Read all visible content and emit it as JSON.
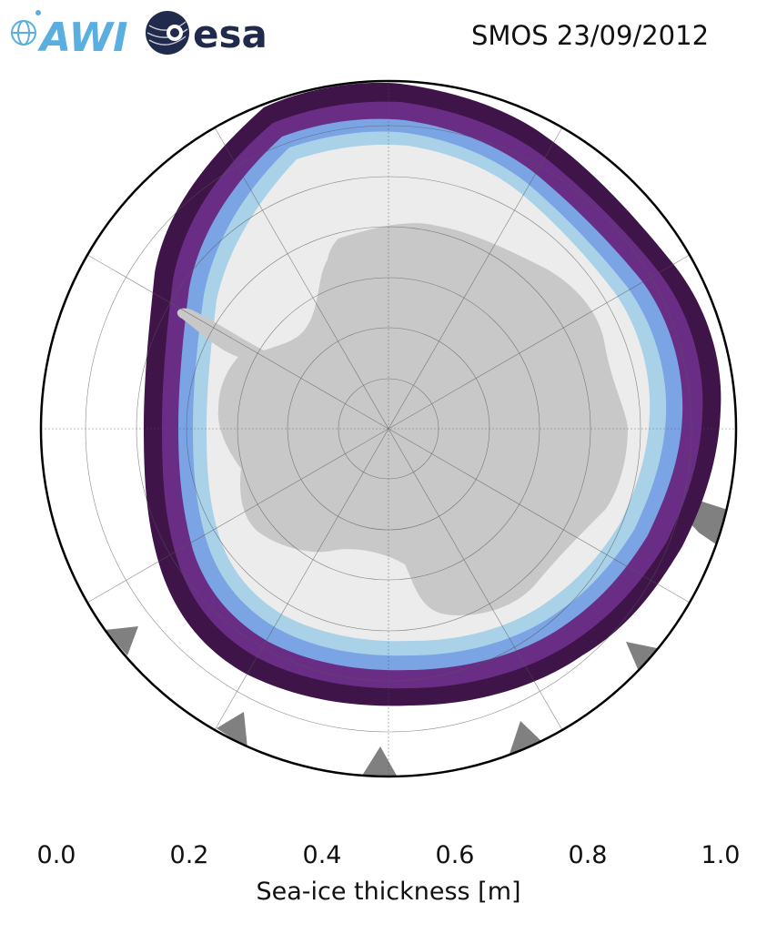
{
  "header": {
    "title": "SMOS 23/09/2012",
    "logos": [
      {
        "name": "awi-logo",
        "text": "AWI",
        "color": "#5aaee0"
      },
      {
        "name": "esa-logo",
        "text": "esa",
        "color": "#1f2a4d"
      }
    ]
  },
  "map": {
    "projection": "south-polar-stereographic",
    "ocean_color": "#ffffff",
    "land_color": "#c8c8c8",
    "no_data_color": "#808080",
    "open_ice_color": "#ececec",
    "graticule": {
      "meridian_step_deg": 30,
      "parallel_rings": 7
    }
  },
  "colorbar": {
    "label": "Sea-ice thickness [m]",
    "ticks": [
      "0.0",
      "0.2",
      "0.4",
      "0.6",
      "0.8",
      "1.0"
    ],
    "range": [
      0.0,
      1.0
    ],
    "extend": "both",
    "stops": [
      {
        "value": 0.0,
        "color": "#2c0f2b"
      },
      {
        "value": 0.15,
        "color": "#4a1a55"
      },
      {
        "value": 0.3,
        "color": "#6a2d86"
      },
      {
        "value": 0.45,
        "color": "#7d5cc9"
      },
      {
        "value": 0.6,
        "color": "#6f98e3"
      },
      {
        "value": 0.8,
        "color": "#9fcbe6"
      },
      {
        "value": 1.0,
        "color": "#e3eded"
      }
    ]
  }
}
